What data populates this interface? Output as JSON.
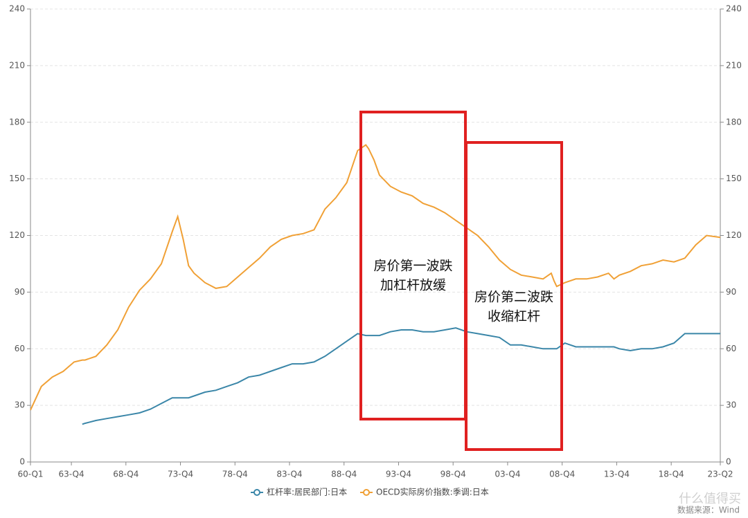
{
  "chart_data": {
    "type": "line",
    "x": [
      1960,
      1961,
      1962,
      1963,
      1964,
      1964.75,
      1965,
      1966,
      1967,
      1968,
      1969,
      1970,
      1971,
      1972,
      1973,
      1973.5,
      1974,
      1974.5,
      1975,
      1976,
      1977,
      1978,
      1979,
      1980,
      1981,
      1982,
      1983,
      1984,
      1985,
      1986,
      1987,
      1988,
      1989,
      1990,
      1990.75,
      1991,
      1991.5,
      1992,
      1993,
      1994,
      1995,
      1996,
      1997,
      1998,
      1999,
      2000,
      2001,
      2002,
      2003,
      2004,
      2005,
      2006,
      2007,
      2007.75,
      2008,
      2008.25,
      2009,
      2010,
      2011,
      2012,
      2013,
      2013.5,
      2014,
      2015,
      2016,
      2017,
      2018,
      2019,
      2020,
      2021,
      2022,
      2023.25
    ],
    "series": [
      {
        "name": "杠杆率:居民部门:日本",
        "color": "#3a86a8",
        "values": [
          null,
          null,
          null,
          null,
          null,
          20,
          20.5,
          22,
          23,
          24,
          25,
          26,
          28,
          31,
          34,
          34,
          34,
          34,
          35,
          37,
          38,
          40,
          42,
          45,
          46,
          48,
          50,
          52,
          52,
          53,
          56,
          60,
          64,
          68,
          67,
          67,
          67,
          67,
          69,
          70,
          70,
          69,
          69,
          70,
          71,
          69,
          68,
          67,
          66,
          62,
          62,
          61,
          60,
          60,
          60,
          60,
          63,
          61,
          61,
          61,
          61,
          61,
          60,
          59,
          60,
          60,
          61,
          63,
          68,
          68,
          68,
          68
        ]
      },
      {
        "name": "OECD实际房价指数:季调:日本",
        "color": "#f0a035",
        "axis": "y2",
        "values": [
          27.5,
          40,
          45,
          48,
          53,
          54,
          54,
          56,
          62,
          70,
          82,
          91,
          97,
          105,
          122,
          130,
          118,
          104,
          100,
          95,
          92,
          93,
          98,
          103,
          108,
          114,
          118,
          120,
          121,
          123,
          134,
          140,
          148,
          165,
          168,
          166,
          160,
          152,
          146,
          143,
          141,
          137,
          135,
          132,
          128,
          124,
          120,
          114,
          107,
          102,
          99,
          98,
          97,
          100,
          96,
          93,
          95,
          97,
          97,
          98,
          100,
          97,
          99,
          101,
          104,
          105,
          107,
          106,
          108,
          115,
          120,
          119
        ]
      }
    ],
    "xlim": [
      1960,
      2023.25
    ],
    "xticks": [
      {
        "value": 1960,
        "label": "60-Q1"
      },
      {
        "value": 1963.75,
        "label": "63-Q4"
      },
      {
        "value": 1968.75,
        "label": "68-Q4"
      },
      {
        "value": 1973.75,
        "label": "73-Q4"
      },
      {
        "value": 1978.75,
        "label": "78-Q4"
      },
      {
        "value": 1983.75,
        "label": "83-Q4"
      },
      {
        "value": 1988.75,
        "label": "88-Q4"
      },
      {
        "value": 1993.75,
        "label": "93-Q4"
      },
      {
        "value": 1998.75,
        "label": "98-Q4"
      },
      {
        "value": 2003.75,
        "label": "03-Q4"
      },
      {
        "value": 2008.75,
        "label": "08-Q4"
      },
      {
        "value": 2013.75,
        "label": "13-Q4"
      },
      {
        "value": 2018.75,
        "label": "18-Q4"
      },
      {
        "value": 2023.25,
        "label": "23-Q2"
      }
    ],
    "ylim": [
      0,
      240
    ],
    "yticks": [
      0,
      30,
      60,
      90,
      120,
      150,
      180,
      210,
      240
    ],
    "y2lim": [
      0,
      240
    ],
    "y2ticks": [
      0,
      30,
      60,
      90,
      120,
      150,
      180,
      210,
      240
    ],
    "grid": true,
    "annotations": [
      {
        "text": [
          "房价第一波跌",
          "加杠杆放缓"
        ],
        "color": "#e02020"
      },
      {
        "text": [
          "房价第二波跌",
          "收缩杠杆"
        ],
        "color": "#e02020"
      }
    ],
    "source": "数据来源：Wind",
    "watermark": "什么值得买"
  }
}
